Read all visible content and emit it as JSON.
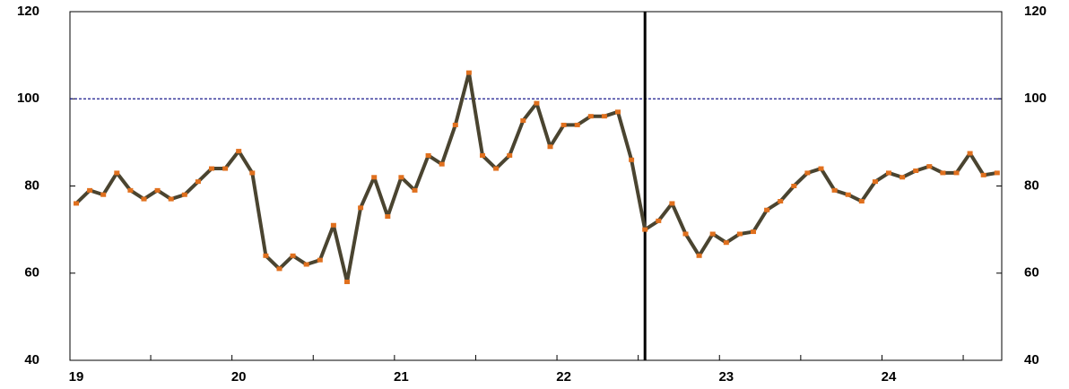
{
  "chart_data": {
    "type": "line",
    "categories": [
      "19",
      null,
      null,
      null,
      null,
      null,
      null,
      null,
      null,
      null,
      null,
      null,
      "20",
      null,
      null,
      null,
      null,
      null,
      null,
      null,
      null,
      null,
      null,
      null,
      "21",
      null,
      null,
      null,
      null,
      null,
      null,
      null,
      null,
      null,
      null,
      null,
      "22",
      null,
      null,
      null,
      null,
      null,
      null,
      null,
      null,
      null,
      null,
      null,
      "23",
      null,
      null,
      null,
      null,
      null,
      null,
      null,
      null,
      null,
      null,
      null,
      "24",
      null,
      null,
      null,
      null,
      null,
      null,
      null,
      null
    ],
    "series": [
      {
        "color": "#4a4430",
        "marker_color": "#e0701e",
        "values": [
          76,
          79,
          78,
          83,
          79,
          77,
          79,
          77,
          78,
          81,
          84,
          84,
          88,
          83,
          64,
          61,
          64,
          62,
          63,
          71,
          58,
          75,
          82,
          73,
          82,
          79,
          87,
          85,
          94,
          106,
          87,
          84,
          87,
          95,
          99,
          89,
          94,
          94,
          96,
          96,
          97,
          86,
          70,
          72,
          76,
          69,
          64,
          69,
          67,
          69,
          69.5,
          74.5,
          76.5,
          80,
          83,
          84,
          79,
          78,
          76.5,
          81,
          83,
          82,
          83.5,
          84.5,
          83,
          83,
          87.5,
          82.5,
          83
        ]
      }
    ],
    "ylim": [
      40,
      120
    ],
    "yticks": [
      40,
      60,
      80,
      100,
      120
    ],
    "y2lim": [
      40,
      120
    ],
    "y2ticks": [
      40,
      60,
      80,
      100,
      120
    ],
    "reference_line": {
      "value": 100,
      "color": "#1a1a8c"
    },
    "vertical_line_at": 42
  }
}
